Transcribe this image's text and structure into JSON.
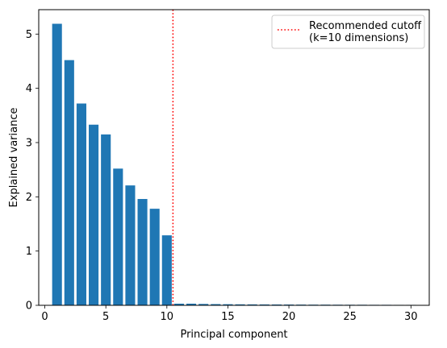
{
  "chart_data": {
    "type": "bar",
    "title": "",
    "xlabel": "Principal component",
    "ylabel": "Explained variance",
    "x": [
      1,
      2,
      3,
      4,
      5,
      6,
      7,
      8,
      9,
      10,
      11,
      12,
      13,
      14,
      15,
      16,
      17,
      18,
      19,
      20,
      21,
      22,
      23,
      24,
      25,
      26,
      27,
      28,
      29,
      30
    ],
    "values": [
      5.19,
      4.52,
      3.72,
      3.33,
      3.15,
      2.52,
      2.21,
      1.96,
      1.78,
      1.29,
      0.03,
      0.03,
      0.025,
      0.022,
      0.02,
      0.018,
      0.017,
      0.016,
      0.015,
      0.014,
      0.013,
      0.012,
      0.012,
      0.011,
      0.01,
      0.01,
      0.009,
      0.009,
      0.008,
      0.008
    ],
    "xlim": [
      -0.5,
      31.5
    ],
    "ylim": [
      0,
      5.45
    ],
    "xticks": [
      0,
      5,
      10,
      15,
      20,
      25,
      30
    ],
    "yticks": [
      0,
      1,
      2,
      3,
      4,
      5
    ],
    "bar_color": "#1f77b4",
    "grid": false,
    "cutoff": {
      "x": 10.5,
      "color": "#ff0000",
      "style": "dotted",
      "label_line1": "Recommended cutoff",
      "label_line2": "(k=10 dimensions)"
    },
    "legend_placement": "top-right"
  }
}
